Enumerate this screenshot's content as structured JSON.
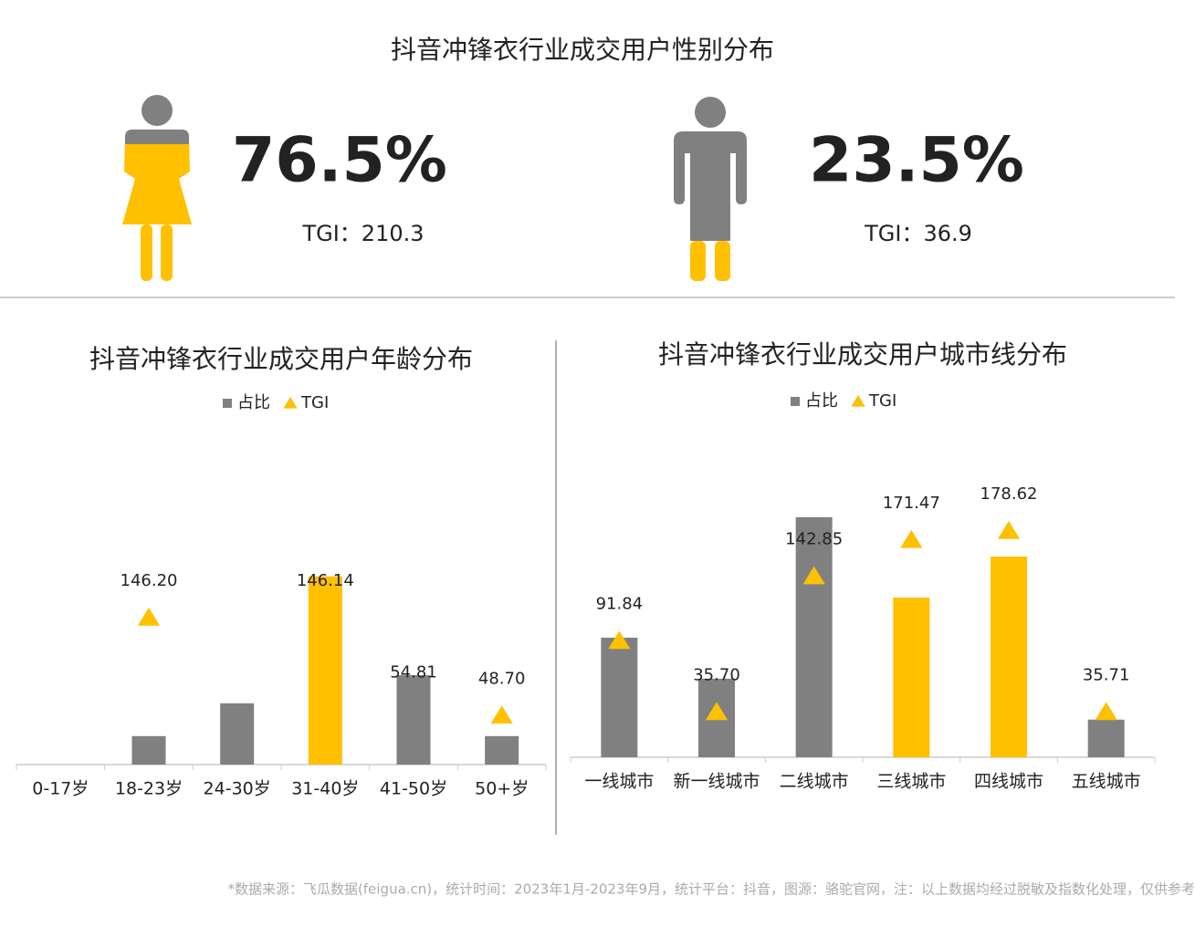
{
  "gender": {
    "title": "抖音冲锋衣行业成交用户性别分布",
    "items": [
      {
        "share": "76.5%",
        "tgi": "TGI：210.3"
      },
      {
        "share": "23.5%",
        "tgi": "TGI：36.9"
      }
    ]
  },
  "chart_data": [
    {
      "type": "bar_tgi",
      "title": "抖音冲锋衣行业成交用户年龄分布",
      "categories": [
        "0-17岁",
        "18-23岁",
        "24-30岁",
        "31-40岁",
        "41-50岁",
        "50+岁"
      ],
      "series": [
        {
          "name": "占比",
          "color": "#808080",
          "values": [
            0,
            7.2,
            15.5,
            47.6,
            22.6,
            7.2
          ],
          "colors": [
            "#808080",
            "#808080",
            "#808080",
            "#ffc000",
            "#808080",
            "#808080"
          ]
        },
        {
          "name": "TGI",
          "color": "#ffc000",
          "axis": "y2",
          "values": [
            null,
            146.2,
            null,
            146.14,
            54.81,
            48.7
          ],
          "value_labels": [
            null,
            "146.20",
            null,
            "146.14",
            "54.81",
            "48.70"
          ]
        }
      ],
      "ylim": [
        0,
        60
      ],
      "y2lim": [
        0,
        236
      ]
    },
    {
      "type": "bar_tgi",
      "title": "抖音冲锋衣行业成交用户城市线分布",
      "categories": [
        "一线城市",
        "新一线城市",
        "二线城市",
        "三线城市",
        "四线城市",
        "五线城市"
      ],
      "series": [
        {
          "name": "占比",
          "color": "#808080",
          "values": [
            14.3,
            9.4,
            28.7,
            19.1,
            24.0,
            4.5
          ],
          "colors": [
            "#808080",
            "#808080",
            "#808080",
            "#ffc000",
            "#ffc000",
            "#808080"
          ]
        },
        {
          "name": "TGI",
          "color": "#ffc000",
          "axis": "y2",
          "values": [
            91.84,
            35.7,
            142.85,
            171.47,
            178.62,
            35.71
          ],
          "value_labels": [
            "91.84",
            "35.70",
            "142.85",
            "171.47",
            "178.62",
            "35.71"
          ]
        }
      ],
      "ylim": [
        0,
        30
      ],
      "y2lim": [
        0,
        198
      ]
    }
  ],
  "footer": "*数据来源：飞瓜数据(feigua.cn)，统计时间：2023年1月-2023年9月，统计平台：抖音，图源：骆驼官网，注：以上数据均经过脱敏及指数化处理，仅供参考"
}
